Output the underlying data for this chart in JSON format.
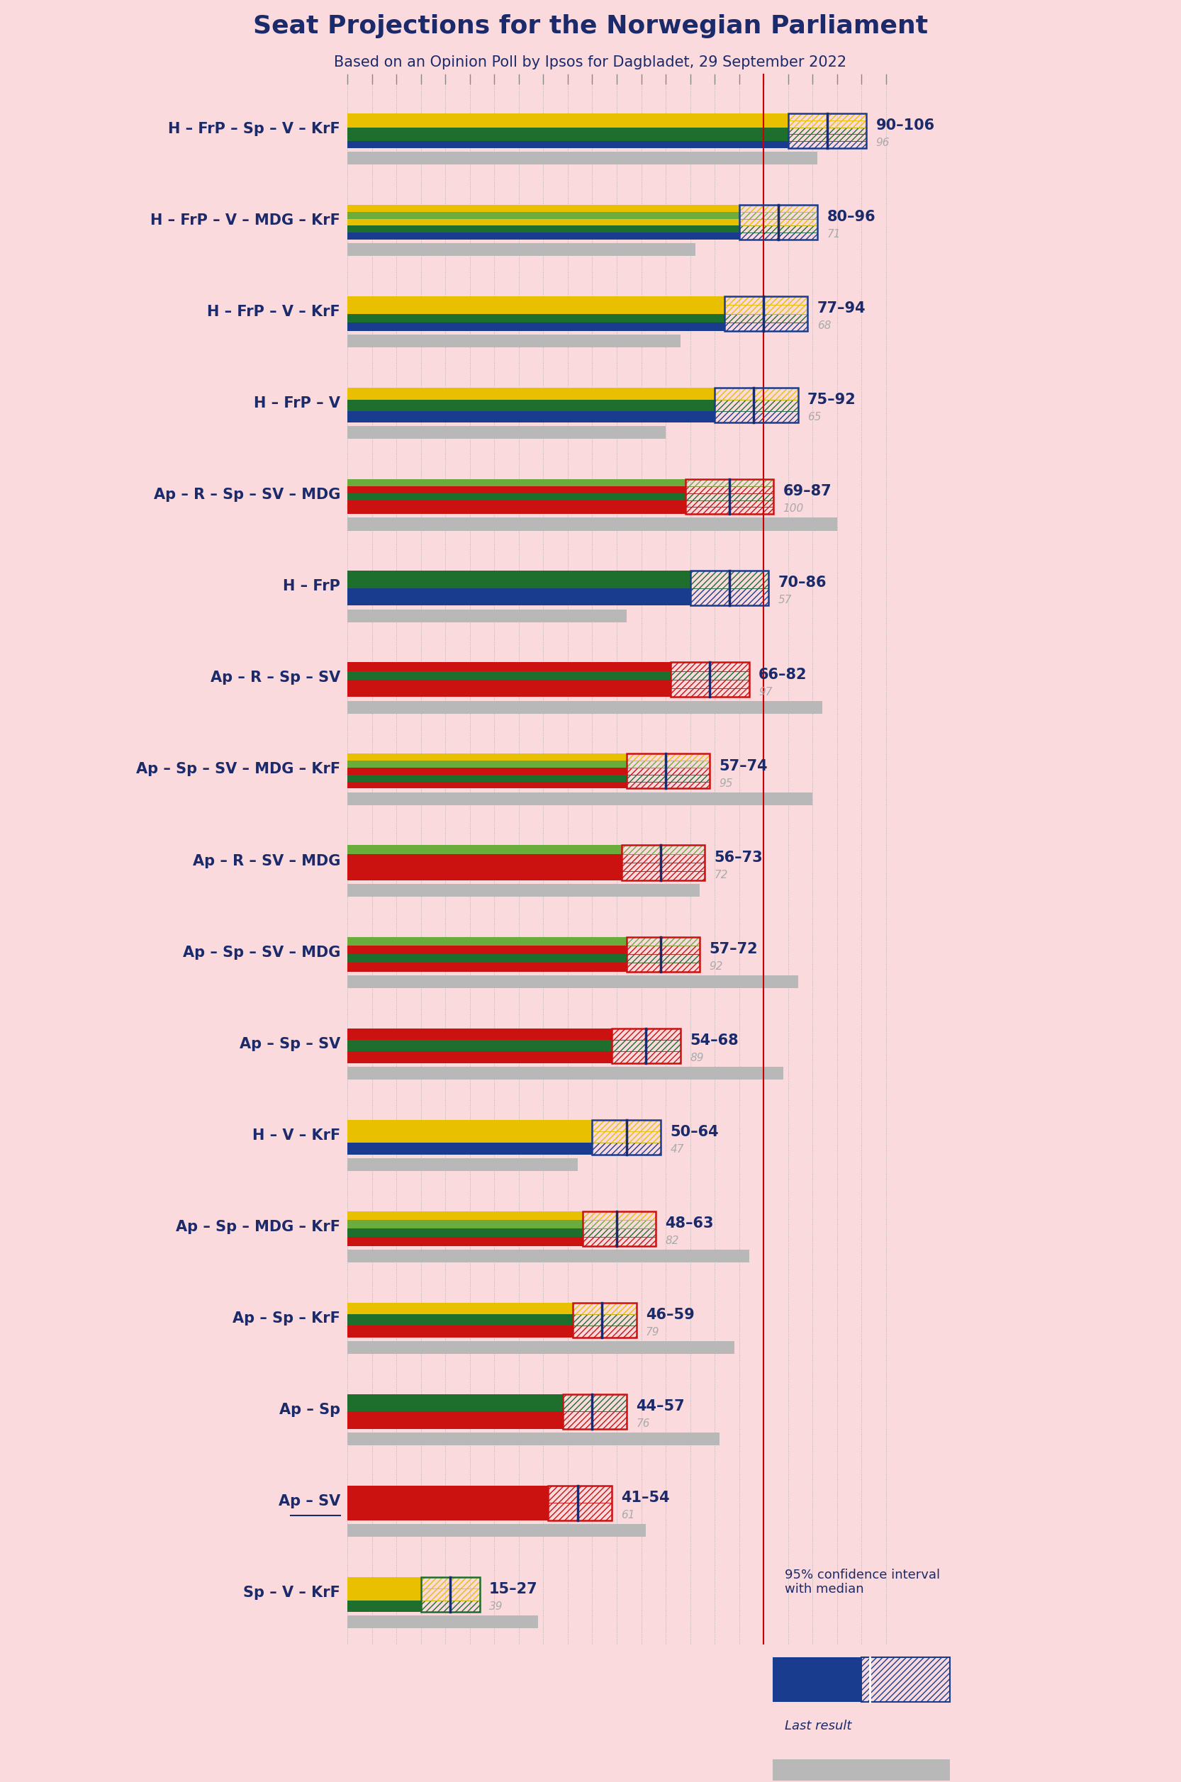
{
  "title": "Seat Projections for the Norwegian Parliament",
  "subtitle": "Based on an Opinion Poll by Ipsos for Dagbladet, 29 September 2022",
  "background_color": "#FADADD",
  "coalitions": [
    {
      "name": "H – FrP – Sp – V – KrF",
      "ci_low": 90,
      "ci_high": 106,
      "median": 98,
      "last": 96,
      "underline": false,
      "parties": [
        "H",
        "FrP",
        "Sp",
        "V",
        "KrF"
      ]
    },
    {
      "name": "H – FrP – V – MDG – KrF",
      "ci_low": 80,
      "ci_high": 96,
      "median": 88,
      "last": 71,
      "underline": false,
      "parties": [
        "H",
        "FrP",
        "V",
        "MDG",
        "KrF"
      ]
    },
    {
      "name": "H – FrP – V – KrF",
      "ci_low": 77,
      "ci_high": 94,
      "median": 85,
      "last": 68,
      "underline": false,
      "parties": [
        "H",
        "FrP",
        "V",
        "KrF"
      ]
    },
    {
      "name": "H – FrP – V",
      "ci_low": 75,
      "ci_high": 92,
      "median": 83,
      "last": 65,
      "underline": false,
      "parties": [
        "H",
        "FrP",
        "V"
      ]
    },
    {
      "name": "Ap – R – Sp – SV – MDG",
      "ci_low": 69,
      "ci_high": 87,
      "median": 78,
      "last": 100,
      "underline": false,
      "parties": [
        "Ap",
        "R",
        "Sp",
        "SV",
        "MDG"
      ]
    },
    {
      "name": "H – FrP",
      "ci_low": 70,
      "ci_high": 86,
      "median": 78,
      "last": 57,
      "underline": false,
      "parties": [
        "H",
        "FrP"
      ]
    },
    {
      "name": "Ap – R – Sp – SV",
      "ci_low": 66,
      "ci_high": 82,
      "median": 74,
      "last": 97,
      "underline": false,
      "parties": [
        "Ap",
        "R",
        "Sp",
        "SV"
      ]
    },
    {
      "name": "Ap – Sp – SV – MDG – KrF",
      "ci_low": 57,
      "ci_high": 74,
      "median": 65,
      "last": 95,
      "underline": false,
      "parties": [
        "Ap",
        "Sp",
        "SV",
        "MDG",
        "KrF"
      ]
    },
    {
      "name": "Ap – R – SV – MDG",
      "ci_low": 56,
      "ci_high": 73,
      "median": 64,
      "last": 72,
      "underline": false,
      "parties": [
        "Ap",
        "R",
        "SV",
        "MDG"
      ]
    },
    {
      "name": "Ap – Sp – SV – MDG",
      "ci_low": 57,
      "ci_high": 72,
      "median": 64,
      "last": 92,
      "underline": false,
      "parties": [
        "Ap",
        "Sp",
        "SV",
        "MDG"
      ]
    },
    {
      "name": "Ap – Sp – SV",
      "ci_low": 54,
      "ci_high": 68,
      "median": 61,
      "last": 89,
      "underline": false,
      "parties": [
        "Ap",
        "Sp",
        "SV"
      ]
    },
    {
      "name": "H – V – KrF",
      "ci_low": 50,
      "ci_high": 64,
      "median": 57,
      "last": 47,
      "underline": false,
      "parties": [
        "H",
        "V",
        "KrF"
      ]
    },
    {
      "name": "Ap – Sp – MDG – KrF",
      "ci_low": 48,
      "ci_high": 63,
      "median": 55,
      "last": 82,
      "underline": false,
      "parties": [
        "Ap",
        "Sp",
        "MDG",
        "KrF"
      ]
    },
    {
      "name": "Ap – Sp – KrF",
      "ci_low": 46,
      "ci_high": 59,
      "median": 52,
      "last": 79,
      "underline": false,
      "parties": [
        "Ap",
        "Sp",
        "KrF"
      ]
    },
    {
      "name": "Ap – Sp",
      "ci_low": 44,
      "ci_high": 57,
      "median": 50,
      "last": 76,
      "underline": false,
      "parties": [
        "Ap",
        "Sp"
      ]
    },
    {
      "name": "Ap – SV",
      "ci_low": 41,
      "ci_high": 54,
      "median": 47,
      "last": 61,
      "underline": true,
      "parties": [
        "Ap",
        "SV"
      ]
    },
    {
      "name": "Sp – V – KrF",
      "ci_low": 15,
      "ci_high": 27,
      "median": 21,
      "last": 39,
      "underline": false,
      "parties": [
        "Sp",
        "V",
        "KrF"
      ]
    }
  ],
  "party_colors": {
    "H": "#1a3c8f",
    "FrP": "#1e6e2d",
    "Sp": "#1e6e2d",
    "V": "#e8c000",
    "KrF": "#e8c000",
    "Ap": "#cc1111",
    "R": "#cc1111",
    "SV": "#cc1111",
    "MDG": "#6aad3d"
  },
  "x_max": 110,
  "majority_line": 85,
  "ci_label_color": "#1a2a6a",
  "last_color": "#aaaaaa",
  "grid_color": "#aaaaaa",
  "majority_color": "#cc0000",
  "legend_ci_text": "95% confidence interval\nwith median",
  "legend_last_text": "Last result"
}
